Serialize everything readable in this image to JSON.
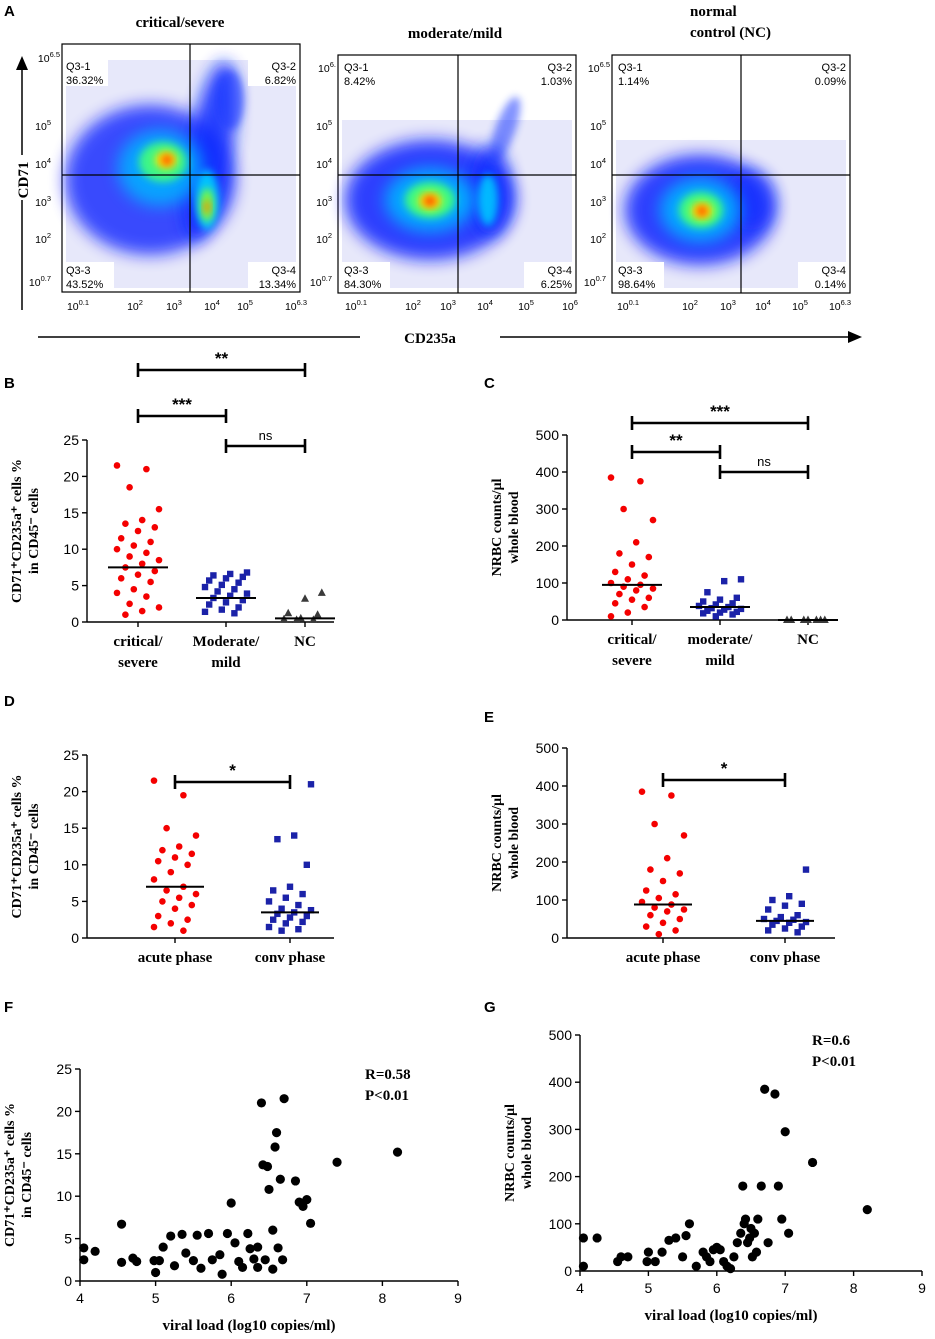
{
  "panel_letters": [
    "A",
    "B",
    "C",
    "D",
    "E",
    "F",
    "G"
  ],
  "panelA": {
    "y_label": "CD71",
    "x_label": "CD235a",
    "plots": [
      {
        "title": "critical/severe",
        "quadrants": [
          "Q3-1",
          "Q3-2",
          "Q3-3",
          "Q3-4"
        ],
        "percents": [
          "36.32%",
          "6.82%",
          "43.52%",
          "13.34%"
        ],
        "y_ticks": [
          "10",
          "10",
          "10",
          "10",
          "10",
          "10"
        ],
        "y_exps": [
          "0.7",
          "2",
          "3",
          "4",
          "5",
          "6.5"
        ],
        "x_ticks": [
          "10",
          "10",
          "10",
          "10",
          "10",
          "10"
        ],
        "x_exps": [
          "0.1",
          "2",
          "3",
          "4",
          "5",
          "6.3"
        ]
      },
      {
        "title": "moderate/mild",
        "quadrants": [
          "Q3-1",
          "Q3-2",
          "Q3-3",
          "Q3-4"
        ],
        "percents": [
          "8.42%",
          "1.03%",
          "84.30%",
          "6.25%"
        ],
        "y_ticks": [
          "10",
          "10",
          "10",
          "10",
          "10",
          "10"
        ],
        "y_exps": [
          "0.7",
          "2",
          "3",
          "4",
          "5",
          "6."
        ],
        "x_ticks": [
          "10",
          "10",
          "10",
          "10",
          "10",
          "10"
        ],
        "x_exps": [
          "0.1",
          "2",
          "3",
          "4",
          "5",
          "6"
        ]
      },
      {
        "title_line1": "normal",
        "title_line2": "control (NC)",
        "quadrants": [
          "Q3-1",
          "Q3-2",
          "Q3-3",
          "Q3-4"
        ],
        "percents": [
          "1.14%",
          "0.09%",
          "98.64%",
          "0.14%"
        ],
        "y_ticks": [
          "10",
          "10",
          "10",
          "10",
          "10",
          "10"
        ],
        "y_exps": [
          "0.7",
          "2",
          "3",
          "4",
          "5",
          "6.5"
        ],
        "x_ticks": [
          "10",
          "10",
          "10",
          "10",
          "10",
          "10"
        ],
        "x_exps": [
          "0.1",
          "2",
          "3",
          "4",
          "5",
          "6.3"
        ]
      }
    ]
  },
  "colors": {
    "red": "#f40000",
    "blue": "#1b22a8",
    "black": "#000000",
    "gray": "#3a3a3a"
  },
  "chart_data": [
    {
      "id": "B",
      "type": "scatter",
      "ylabel_line1": "CD71⁺CD235a⁺ cells %",
      "ylabel_line2": "in CD45⁻ cells",
      "ylim": [
        0,
        25
      ],
      "yticks": [
        "0",
        "5",
        "10",
        "15",
        "20",
        "25"
      ],
      "categories_line1": [
        "critical/",
        "Moderate/",
        "NC"
      ],
      "categories_line2": [
        "severe",
        "mild",
        ""
      ],
      "series": [
        {
          "name": "critical/severe",
          "median": 7.5,
          "values": [
            21.5,
            21,
            18.5,
            15.5,
            14,
            13.5,
            13,
            12.5,
            11.5,
            11,
            10.5,
            10,
            9.5,
            9,
            8.5,
            8,
            7.5,
            7,
            6.5,
            6,
            5.5,
            4.5,
            4,
            3.5,
            2.5,
            2,
            1.5,
            1
          ]
        },
        {
          "name": "moderate/mild",
          "median": 3.3,
          "values": [
            6.8,
            6.6,
            6.4,
            6.2,
            6,
            5.7,
            5.4,
            5.1,
            4.8,
            4.5,
            4.2,
            3.9,
            3.6,
            3.3,
            3,
            2.7,
            2.4,
            2,
            1.7,
            1.4,
            1.2
          ]
        },
        {
          "name": "NC",
          "median": 0.5,
          "values": [
            4,
            3.2,
            1.2,
            1,
            0.5,
            0.4,
            0.3,
            0.3
          ]
        }
      ],
      "significance": [
        {
          "from": 0,
          "to": 2,
          "label": "**"
        },
        {
          "from": 0,
          "to": 1,
          "label": "***"
        },
        {
          "from": 1,
          "to": 2,
          "label": "ns"
        }
      ]
    },
    {
      "id": "C",
      "type": "scatter",
      "ylabel_line1": "NRBC counts/μl",
      "ylabel_line2": "whole blood",
      "ylim": [
        0,
        500
      ],
      "yticks": [
        "0",
        "100",
        "200",
        "300",
        "400",
        "500"
      ],
      "categories_line1": [
        "critical/",
        "moderate/",
        "NC"
      ],
      "categories_line2": [
        "severe",
        "mild",
        ""
      ],
      "series": [
        {
          "name": "critical/severe",
          "median": 95,
          "values": [
            385,
            375,
            300,
            270,
            210,
            180,
            170,
            150,
            130,
            120,
            110,
            100,
            95,
            90,
            85,
            80,
            70,
            60,
            55,
            45,
            35,
            20,
            10
          ]
        },
        {
          "name": "moderate/mild",
          "median": 35,
          "values": [
            110,
            105,
            75,
            60,
            55,
            50,
            45,
            42,
            38,
            35,
            32,
            30,
            28,
            25,
            22,
            20,
            18,
            15,
            10
          ]
        },
        {
          "name": "NC",
          "median": 0,
          "values": [
            0,
            0,
            0,
            0,
            0,
            0,
            0
          ]
        }
      ],
      "significance": [
        {
          "from": 0,
          "to": 2,
          "label": "***"
        },
        {
          "from": 0,
          "to": 1,
          "label": "**"
        },
        {
          "from": 1,
          "to": 2,
          "label": "ns"
        }
      ]
    },
    {
      "id": "D",
      "type": "scatter",
      "ylabel_line1": "CD71⁺CD235a⁺ cells %",
      "ylabel_line2": "in CD45⁻ cells",
      "ylim": [
        0,
        25
      ],
      "yticks": [
        "0",
        "5",
        "10",
        "15",
        "20",
        "25"
      ],
      "categories_line1": [
        "acute phase",
        "conv phase"
      ],
      "categories_line2": [
        "",
        ""
      ],
      "series": [
        {
          "name": "acute phase",
          "median": 7,
          "values": [
            21.5,
            19.5,
            15,
            14,
            12.5,
            12,
            11.5,
            11,
            10.5,
            10,
            9,
            8,
            7,
            6.5,
            6,
            5.5,
            5,
            4.5,
            4,
            3,
            2.5,
            2,
            1.5,
            1
          ]
        },
        {
          "name": "conv phase",
          "median": 3.5,
          "values": [
            21,
            14,
            13.5,
            10,
            7,
            6.5,
            6,
            5.5,
            5,
            4.5,
            4,
            3.8,
            3.5,
            3.3,
            3,
            2.8,
            2.5,
            2.2,
            2,
            1.5,
            1.2,
            1
          ]
        }
      ],
      "significance": [
        {
          "from": 0,
          "to": 1,
          "label": "*"
        }
      ]
    },
    {
      "id": "E",
      "type": "scatter",
      "ylabel_line1": "NRBC counts/μl",
      "ylabel_line2": "whole blood",
      "ylim": [
        0,
        500
      ],
      "yticks": [
        "0",
        "100",
        "200",
        "300",
        "400",
        "500"
      ],
      "categories_line1": [
        "acute phase",
        "conv phase"
      ],
      "categories_line2": [
        "",
        ""
      ],
      "series": [
        {
          "name": "acute phase",
          "median": 88,
          "values": [
            385,
            375,
            300,
            270,
            210,
            180,
            170,
            150,
            125,
            115,
            105,
            95,
            88,
            80,
            75,
            70,
            60,
            50,
            40,
            30,
            20,
            10
          ]
        },
        {
          "name": "conv phase",
          "median": 45,
          "values": [
            180,
            110,
            100,
            90,
            85,
            75,
            60,
            55,
            50,
            48,
            45,
            42,
            40,
            35,
            30,
            25,
            20,
            15
          ]
        }
      ],
      "significance": [
        {
          "from": 0,
          "to": 1,
          "label": "*"
        }
      ]
    },
    {
      "id": "F",
      "type": "scatter",
      "ylabel_line1": "CD71⁺CD235a⁺ cells %",
      "ylabel_line2": "in CD45⁻ cells",
      "xlabel": "viral load  (log10 copies/ml)",
      "r_label": "R=0.58",
      "p_label": "P<0.01",
      "xlim": [
        4,
        9
      ],
      "ylim": [
        0,
        25
      ],
      "xticks": [
        "4",
        "5",
        "6",
        "7",
        "8",
        "9"
      ],
      "yticks": [
        "0",
        "5",
        "10",
        "15",
        "20",
        "25"
      ],
      "points": [
        [
          4.05,
          3.9
        ],
        [
          4.05,
          2.5
        ],
        [
          4.2,
          3.5
        ],
        [
          4.55,
          6.7
        ],
        [
          4.55,
          2.2
        ],
        [
          4.7,
          2.7
        ],
        [
          4.75,
          2.3
        ],
        [
          4.98,
          2.4
        ],
        [
          5.0,
          1.0
        ],
        [
          5.05,
          2.4
        ],
        [
          5.1,
          4.0
        ],
        [
          5.2,
          5.3
        ],
        [
          5.25,
          1.8
        ],
        [
          5.35,
          5.5
        ],
        [
          5.4,
          3.3
        ],
        [
          5.5,
          2.4
        ],
        [
          5.55,
          5.4
        ],
        [
          5.6,
          1.5
        ],
        [
          5.7,
          5.6
        ],
        [
          5.75,
          2.5
        ],
        [
          5.85,
          3.1
        ],
        [
          5.88,
          0.8
        ],
        [
          5.95,
          5.6
        ],
        [
          6.0,
          9.2
        ],
        [
          6.05,
          4.5
        ],
        [
          6.1,
          2.3
        ],
        [
          6.15,
          1.6
        ],
        [
          6.22,
          5.6
        ],
        [
          6.25,
          3.8
        ],
        [
          6.3,
          2.6
        ],
        [
          6.35,
          1.6
        ],
        [
          6.35,
          4.0
        ],
        [
          6.4,
          21.0
        ],
        [
          6.42,
          13.7
        ],
        [
          6.45,
          2.5
        ],
        [
          6.48,
          13.5
        ],
        [
          6.5,
          10.8
        ],
        [
          6.55,
          1.4
        ],
        [
          6.55,
          6.0
        ],
        [
          6.58,
          15.8
        ],
        [
          6.6,
          17.5
        ],
        [
          6.62,
          3.9
        ],
        [
          6.65,
          12.0
        ],
        [
          6.68,
          2.5
        ],
        [
          6.7,
          21.5
        ],
        [
          6.85,
          11.8
        ],
        [
          6.9,
          9.3
        ],
        [
          6.95,
          8.8
        ],
        [
          7.0,
          9.6
        ],
        [
          7.05,
          6.8
        ],
        [
          7.4,
          14.0
        ],
        [
          8.2,
          15.2
        ]
      ]
    },
    {
      "id": "G",
      "type": "scatter",
      "ylabel_line1": "NRBC counts/μl",
      "ylabel_line2": "whole blood",
      "xlabel": "viral load  (log10 copies/ml)",
      "r_label": "R=0.6",
      "p_label": "P<0.01",
      "xlim": [
        4,
        9
      ],
      "ylim": [
        0,
        500
      ],
      "xticks": [
        "4",
        "5",
        "6",
        "7",
        "8",
        "9"
      ],
      "yticks": [
        "0",
        "100",
        "200",
        "300",
        "400",
        "500"
      ],
      "points": [
        [
          4.05,
          70
        ],
        [
          4.05,
          10
        ],
        [
          4.25,
          70
        ],
        [
          4.55,
          20
        ],
        [
          4.6,
          30
        ],
        [
          4.7,
          30
        ],
        [
          4.98,
          20
        ],
        [
          5.0,
          40
        ],
        [
          5.1,
          20
        ],
        [
          5.2,
          40
        ],
        [
          5.3,
          65
        ],
        [
          5.4,
          70
        ],
        [
          5.5,
          30
        ],
        [
          5.55,
          75
        ],
        [
          5.6,
          100
        ],
        [
          5.7,
          10
        ],
        [
          5.8,
          40
        ],
        [
          5.85,
          30
        ],
        [
          5.9,
          20
        ],
        [
          5.95,
          45
        ],
        [
          6.0,
          50
        ],
        [
          6.05,
          45
        ],
        [
          6.1,
          20
        ],
        [
          6.15,
          10
        ],
        [
          6.2,
          5
        ],
        [
          6.25,
          30
        ],
        [
          6.3,
          60
        ],
        [
          6.35,
          80
        ],
        [
          6.38,
          180
        ],
        [
          6.4,
          100
        ],
        [
          6.42,
          110
        ],
        [
          6.45,
          60
        ],
        [
          6.48,
          70
        ],
        [
          6.5,
          90
        ],
        [
          6.52,
          30
        ],
        [
          6.55,
          80
        ],
        [
          6.58,
          40
        ],
        [
          6.6,
          110
        ],
        [
          6.65,
          180
        ],
        [
          6.7,
          385
        ],
        [
          6.75,
          60
        ],
        [
          6.85,
          375
        ],
        [
          6.9,
          180
        ],
        [
          6.95,
          110
        ],
        [
          7.0,
          295
        ],
        [
          7.05,
          80
        ],
        [
          7.4,
          230
        ],
        [
          8.2,
          130
        ]
      ]
    }
  ]
}
